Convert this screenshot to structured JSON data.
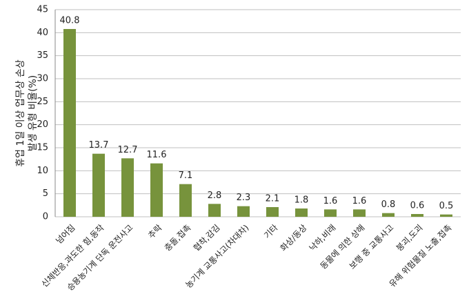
{
  "chart_data": {
    "type": "bar",
    "ylabel": [
      "휴업 1일 이상 업무상 손상",
      "발생 유형 비율(%)"
    ],
    "categories": [
      "넘어짐",
      "신체반응,과도한 힘,동작",
      "승용농기계 단독 운전사고",
      "추락",
      "충돌,접촉",
      "협착,감김",
      "농기계 교통사고(차대차)",
      "기타",
      "화상/동상",
      "낙하,비래",
      "동물에 의한 상해",
      "보행 중 교통사고",
      "붕괴,도괴",
      "유해 위험물질 노출,접촉"
    ],
    "values": [
      40.8,
      13.7,
      12.7,
      11.6,
      7.1,
      2.8,
      2.3,
      2.1,
      1.8,
      1.6,
      1.6,
      0.8,
      0.6,
      0.5
    ],
    "color": "#77933c",
    "ylim": [
      0,
      45
    ],
    "yticks": [
      0,
      5,
      10,
      15,
      20,
      25,
      30,
      35,
      40,
      45
    ],
    "grid": true
  }
}
